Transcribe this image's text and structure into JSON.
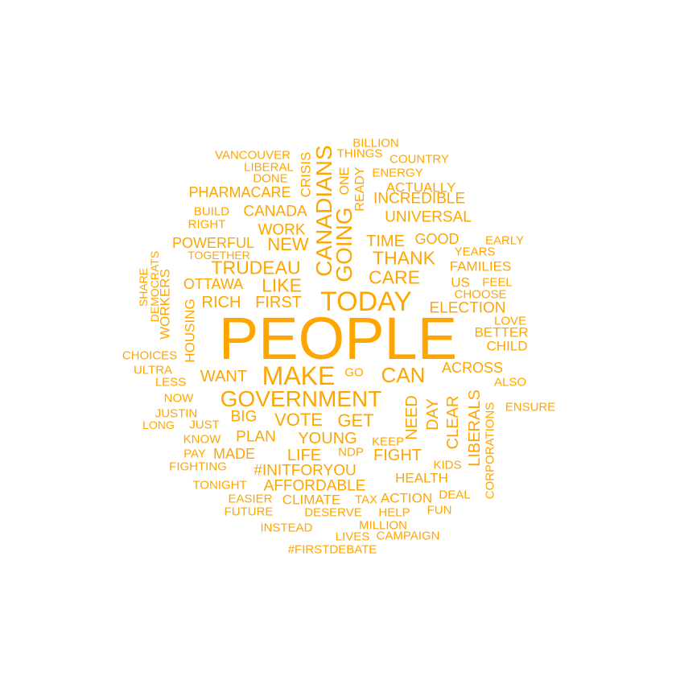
{
  "color": "#FFA500",
  "words": [
    {
      "text": "PEOPLE",
      "weight": 10
    },
    {
      "text": "TODAY",
      "weight": 5
    },
    {
      "text": "MAKE",
      "weight": 5
    },
    {
      "text": "GOVERNMENT",
      "weight": 4.5
    },
    {
      "text": "CANADIANS",
      "weight": 4.2
    },
    {
      "text": "GOING",
      "weight": 4.2
    },
    {
      "text": "CAN",
      "weight": 4
    },
    {
      "text": "TRUDEAU",
      "weight": 3.6
    },
    {
      "text": "LIKE",
      "weight": 3.6
    },
    {
      "text": "CARE",
      "weight": 3.6
    },
    {
      "text": "THANK",
      "weight": 3.6
    },
    {
      "text": "NEW",
      "weight": 3.4
    },
    {
      "text": "VOTE",
      "weight": 3.4
    },
    {
      "text": "GET",
      "weight": 3.4
    },
    {
      "text": "WANT",
      "weight": 3.2
    },
    {
      "text": "TIME",
      "weight": 3.2
    },
    {
      "text": "YOUNG",
      "weight": 3.2
    },
    {
      "text": "NEED",
      "weight": 3
    },
    {
      "text": "CLEAR",
      "weight": 3
    },
    {
      "text": "LIBERALS",
      "weight": 3
    },
    {
      "text": "FIRST",
      "weight": 3
    },
    {
      "text": "RICH",
      "weight": 3
    },
    {
      "text": "LIFE",
      "weight": 3
    },
    {
      "text": "FIGHT",
      "weight": 3
    },
    {
      "text": "DAY",
      "weight": 3
    },
    {
      "text": "ELECTION",
      "weight": 2.8
    },
    {
      "text": "WORK",
      "weight": 2.8
    },
    {
      "text": "CANADA",
      "weight": 2.8
    },
    {
      "text": "UNIVERSAL",
      "weight": 2.8
    },
    {
      "text": "INCREDIBLE",
      "weight": 2.8
    },
    {
      "text": "GOOD",
      "weight": 2.6
    },
    {
      "text": "BIG",
      "weight": 2.8
    },
    {
      "text": "PLAN",
      "weight": 2.8
    },
    {
      "text": "#INITFORYOU",
      "weight": 2.8
    },
    {
      "text": "AFFORDABLE",
      "weight": 2.8
    },
    {
      "text": "POWERFUL",
      "weight": 2.6
    },
    {
      "text": "PHARMACARE",
      "weight": 2.6
    },
    {
      "text": "OTTAWA",
      "weight": 2.6
    },
    {
      "text": "CRISIS",
      "weight": 2.6
    },
    {
      "text": "ACROSS",
      "weight": 2.6
    },
    {
      "text": "MADE",
      "weight": 2.6
    },
    {
      "text": "ACTUALLY",
      "weight": 2.4
    },
    {
      "text": "FAMILIES",
      "weight": 2.4
    },
    {
      "text": "US",
      "weight": 2.4
    },
    {
      "text": "BETTER",
      "weight": 2.4
    },
    {
      "text": "CHILD",
      "weight": 2.4
    },
    {
      "text": "HEALTH",
      "weight": 2.4
    },
    {
      "text": "CLIMATE",
      "weight": 2.4
    },
    {
      "text": "ACTION",
      "weight": 2.4
    },
    {
      "text": "WORKERS",
      "weight": 2.4
    },
    {
      "text": "HOUSING",
      "weight": 2.4
    },
    {
      "text": "READY",
      "weight": 2.2
    },
    {
      "text": "ONE",
      "weight": 2.2
    },
    {
      "text": "ENERGY",
      "weight": 2.2
    },
    {
      "text": "COUNTRY",
      "weight": 2.2
    },
    {
      "text": "BILLION",
      "weight": 2.2
    },
    {
      "text": "THINGS",
      "weight": 2.2
    },
    {
      "text": "VANCOUVER",
      "weight": 2.2
    },
    {
      "text": "LIBERAL",
      "weight": 2.2
    },
    {
      "text": "DONE",
      "weight": 2.2
    },
    {
      "text": "BUILD",
      "weight": 2.2
    },
    {
      "text": "RIGHT",
      "weight": 2.2
    },
    {
      "text": "YEARS",
      "weight": 2.2
    },
    {
      "text": "EARLY",
      "weight": 2.2
    },
    {
      "text": "CHOOSE",
      "weight": 2.2
    },
    {
      "text": "FEEL",
      "weight": 2.2
    },
    {
      "text": "LOVE",
      "weight": 2.2
    },
    {
      "text": "ALSO",
      "weight": 2.2
    },
    {
      "text": "CHOICES",
      "weight": 2.2
    },
    {
      "text": "ULTRA",
      "weight": 2.2
    },
    {
      "text": "LESS",
      "weight": 2.2
    },
    {
      "text": "GO",
      "weight": 2.2
    },
    {
      "text": "NOW",
      "weight": 2.2
    },
    {
      "text": "JUSTIN",
      "weight": 2.2
    },
    {
      "text": "JUST",
      "weight": 2.2
    },
    {
      "text": "LONG",
      "weight": 2
    },
    {
      "text": "KNOW",
      "weight": 2.2
    },
    {
      "text": "PAY",
      "weight": 2.2
    },
    {
      "text": "NDP",
      "weight": 2.2
    },
    {
      "text": "KEEP",
      "weight": 2.2
    },
    {
      "text": "FIGHTING",
      "weight": 2.2
    },
    {
      "text": "KIDS",
      "weight": 2.2
    },
    {
      "text": "CORPORATIONS",
      "weight": 2.2
    },
    {
      "text": "ENSURE",
      "weight": 2.2
    },
    {
      "text": "TONIGHT",
      "weight": 2.2
    },
    {
      "text": "EASIER",
      "weight": 2.2
    },
    {
      "text": "TAX",
      "weight": 2.2
    },
    {
      "text": "DEAL",
      "weight": 2.2
    },
    {
      "text": "FUTURE",
      "weight": 2.2
    },
    {
      "text": "DESERVE",
      "weight": 2.2
    },
    {
      "text": "HELP",
      "weight": 2.2
    },
    {
      "text": "FUN",
      "weight": 2.2
    },
    {
      "text": "INSTEAD",
      "weight": 2.2
    },
    {
      "text": "MILLION",
      "weight": 2.2
    },
    {
      "text": "LIVES",
      "weight": 2.2
    },
    {
      "text": "CAMPAIGN",
      "weight": 2.2
    },
    {
      "text": "#FIRSTDEBATE",
      "weight": 2.2
    },
    {
      "text": "TOGETHER",
      "weight": 2
    },
    {
      "text": "SHARE",
      "weight": 2
    },
    {
      "text": "DEMOCRATS",
      "weight": 2
    }
  ]
}
